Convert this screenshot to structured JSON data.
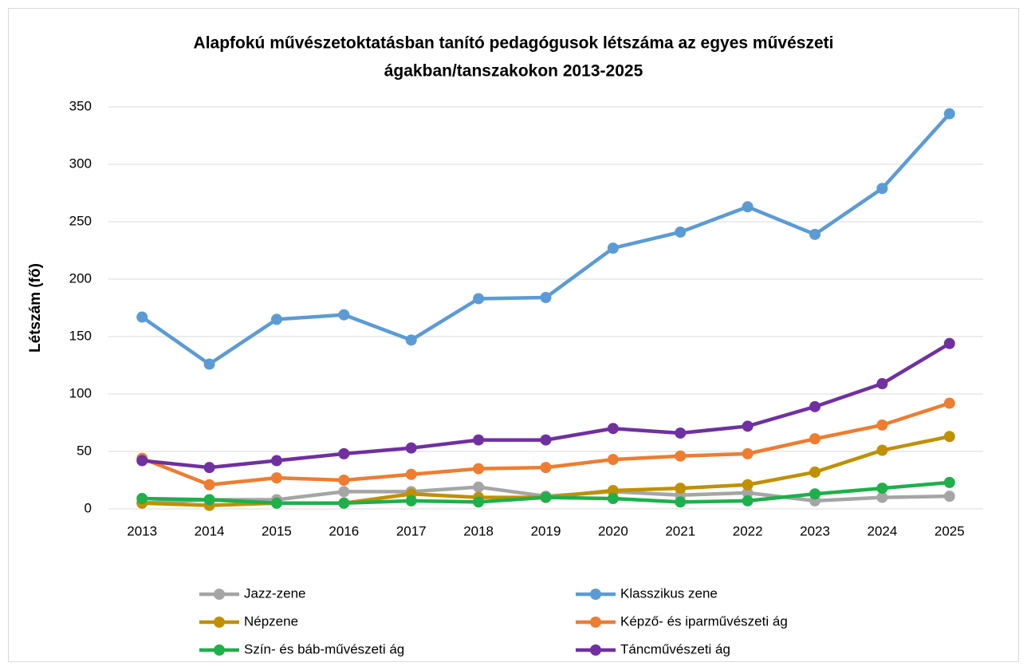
{
  "chart_data": {
    "type": "line",
    "title": [
      "Alapfokú művészetoktatásban tanító pedagógusok létszáma az egyes művészeti",
      "ágakban/tanszakokon 2013-2025"
    ],
    "y_label": "Létszám (fő)",
    "categories": [
      "2013",
      "2014",
      "2015",
      "2016",
      "2017",
      "2018",
      "2019",
      "2020",
      "2021",
      "2022",
      "2023",
      "2024",
      "2025"
    ],
    "series": [
      {
        "name": "Jazz-zene",
        "color": "#a5a5a5",
        "values": [
          5,
          8,
          8,
          15,
          15,
          19,
          11,
          15,
          12,
          14,
          7,
          10,
          11
        ]
      },
      {
        "name": "Klasszikus zene",
        "color": "#5b9bd5",
        "values": [
          167,
          126,
          165,
          169,
          147,
          183,
          184,
          227,
          241,
          263,
          239,
          279,
          344
        ]
      },
      {
        "name": "Népzene",
        "color": "#bf9000",
        "values": [
          5,
          3,
          5,
          5,
          13,
          10,
          10,
          16,
          18,
          21,
          32,
          51,
          63
        ]
      },
      {
        "name": "Képző- és iparművészeti ág",
        "color": "#ed7d31",
        "values": [
          44,
          21,
          27,
          25,
          30,
          35,
          36,
          43,
          46,
          48,
          61,
          73,
          92
        ]
      },
      {
        "name": "Szín- és báb-művészeti ág",
        "color": "#1db04b",
        "values": [
          9,
          8,
          5,
          5,
          7,
          6,
          10,
          9,
          6,
          7,
          13,
          18,
          23
        ]
      },
      {
        "name": "Táncművészeti ág",
        "color": "#7030a0",
        "values": [
          42,
          36,
          42,
          48,
          53,
          60,
          60,
          70,
          66,
          72,
          89,
          109,
          144
        ]
      }
    ],
    "ylim": [
      0,
      350
    ],
    "yticks": [
      0,
      50,
      100,
      150,
      200,
      250,
      300,
      350
    ],
    "grid": true,
    "legend": "bottom"
  }
}
